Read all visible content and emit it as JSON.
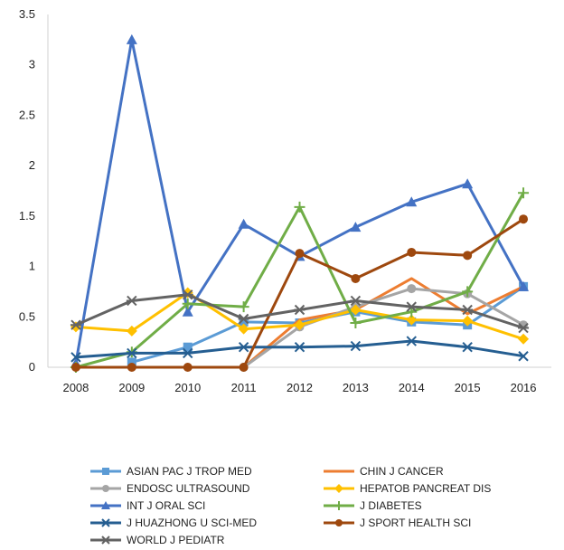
{
  "chart_data": {
    "type": "line",
    "title": "",
    "xlabel": "",
    "ylabel": "",
    "ylim": [
      0,
      3.5
    ],
    "yticks": [
      "0",
      "0.5",
      "1",
      "1.5",
      "2",
      "2.5",
      "3",
      "3.5"
    ],
    "categories": [
      "2008",
      "2009",
      "2010",
      "2011",
      "2012",
      "2013",
      "2014",
      "2015",
      "2016"
    ],
    "grid": "none",
    "legend_position": "bottom",
    "series": [
      {
        "name": "ASIAN PAC J TROP MED",
        "color": "#5B9BD5",
        "marker": "square",
        "values": [
          null,
          0.05,
          0.2,
          0.45,
          0.44,
          0.55,
          0.45,
          0.42,
          0.8
        ]
      },
      {
        "name": "CHIN J CANCER",
        "color": "#ED7D31",
        "marker": "none",
        "values": [
          null,
          null,
          null,
          0.0,
          0.47,
          0.57,
          0.88,
          0.53,
          0.8
        ]
      },
      {
        "name": "ENDOSC ULTRASOUND",
        "color": "#A5A5A5",
        "marker": "circle",
        "values": [
          null,
          null,
          null,
          0.0,
          0.4,
          0.6,
          0.78,
          0.73,
          0.42
        ]
      },
      {
        "name": "HEPATOB PANCREAT DIS",
        "color": "#FFC000",
        "marker": "diamond",
        "values": [
          0.4,
          0.36,
          0.74,
          0.38,
          0.42,
          0.57,
          0.47,
          0.46,
          0.28
        ]
      },
      {
        "name": "INT J ORAL SCI",
        "color": "#4472C4",
        "marker": "triangle",
        "values": [
          0.04,
          3.25,
          0.55,
          1.42,
          1.1,
          1.39,
          1.64,
          1.82,
          0.8
        ]
      },
      {
        "name": "J DIABETES",
        "color": "#70AD47",
        "marker": "plus",
        "values": [
          0.0,
          0.15,
          0.63,
          0.6,
          1.59,
          0.44,
          0.55,
          0.75,
          1.73
        ]
      },
      {
        "name": "J HUAZHONG U SCI-MED",
        "color": "#255E91",
        "marker": "x",
        "values": [
          0.1,
          0.14,
          0.14,
          0.2,
          0.2,
          0.21,
          0.26,
          0.2,
          0.11
        ]
      },
      {
        "name": "J SPORT HEALTH SCI",
        "color": "#9E480E",
        "marker": "circle",
        "values": [
          0.0,
          0.0,
          0.0,
          0.0,
          1.13,
          0.88,
          1.14,
          1.11,
          1.47
        ]
      },
      {
        "name": "WORLD J PEDIATR",
        "color": "#636363",
        "marker": "star",
        "values": [
          0.42,
          0.66,
          0.72,
          0.48,
          0.57,
          0.66,
          0.6,
          0.57,
          0.39
        ]
      }
    ]
  }
}
